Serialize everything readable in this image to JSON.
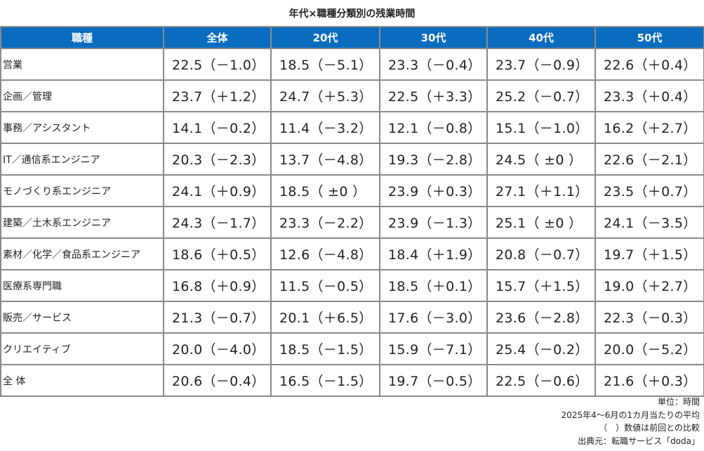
{
  "title": "年代×職種分類別の残業時間",
  "chart_data": {
    "type": "table",
    "title": "年代×職種分類別の残業時間",
    "columns": [
      "職種",
      "全体",
      "20代",
      "30代",
      "40代",
      "50代"
    ],
    "rows": [
      [
        "営業",
        "22.5（－1.0）",
        "18.5（－5.1）",
        "23.3（－0.4）",
        "23.7（－0.9）",
        "22.6（＋0.4）"
      ],
      [
        "企画／管理",
        "23.7（＋1.2）",
        "24.7（＋5.3）",
        "22.5（＋3.3）",
        "25.2（－0.7）",
        "23.3（＋0.4）"
      ],
      [
        "事務／アシスタント",
        "14.1（－0.2）",
        "11.4（－3.2）",
        "12.1（－0.8）",
        "15.1（－1.0）",
        "16.2（＋2.7）"
      ],
      [
        "IT／通信系エンジニア",
        "20.3（－2.3）",
        "13.7（－4.8）",
        "19.3（－2.8）",
        "24.5（ ±0 ）",
        "22.6（－2.1）"
      ],
      [
        "モノづくり系エンジニア",
        "24.1（＋0.9）",
        "18.5（ ±0 ）",
        "23.9（＋0.3）",
        "27.1（＋1.1）",
        "23.5（＋0.7）"
      ],
      [
        "建築／土木系エンジニア",
        "24.3（－1.7）",
        "23.3（－2.2）",
        "23.9（－1.3）",
        "25.1（ ±0 ）",
        "24.1（－3.5）"
      ],
      [
        "素材／化学／食品系エンジニア",
        "18.6（＋0.5）",
        "12.6（－4.8）",
        "18.4（＋1.9）",
        "20.8（－0.7）",
        "19.7（＋1.5）"
      ],
      [
        "医療系専門職",
        "16.8（＋0.9）",
        "11.5（－0.5）",
        "18.5（＋0.1）",
        "15.7（＋1.5）",
        "19.0（＋2.7）"
      ],
      [
        "販売／サービス",
        "21.3（－0.7）",
        "20.1（＋6.5）",
        "17.6（－3.0）",
        "23.6（－2.8）",
        "22.3（－0.3）"
      ],
      [
        "クリエイティブ",
        "20.0（－4.0）",
        "18.5（－1.5）",
        "15.9（－7.1）",
        "25.4（－0.2）",
        "20.0（－5.2）"
      ],
      [
        "全 体",
        "20.6（－0.4）",
        "16.5（－1.5）",
        "19.7（－0.5）",
        "22.5（－0.6）",
        "21.6（＋0.3）"
      ]
    ],
    "header_color": "#0a6cbf"
  },
  "footer": {
    "unit": "単位：時間",
    "period": "2025年4～6月の1カ月当たりの平均",
    "note": "（　）数値は前回との比較",
    "source": "出典元：転職サービス「doda」"
  }
}
